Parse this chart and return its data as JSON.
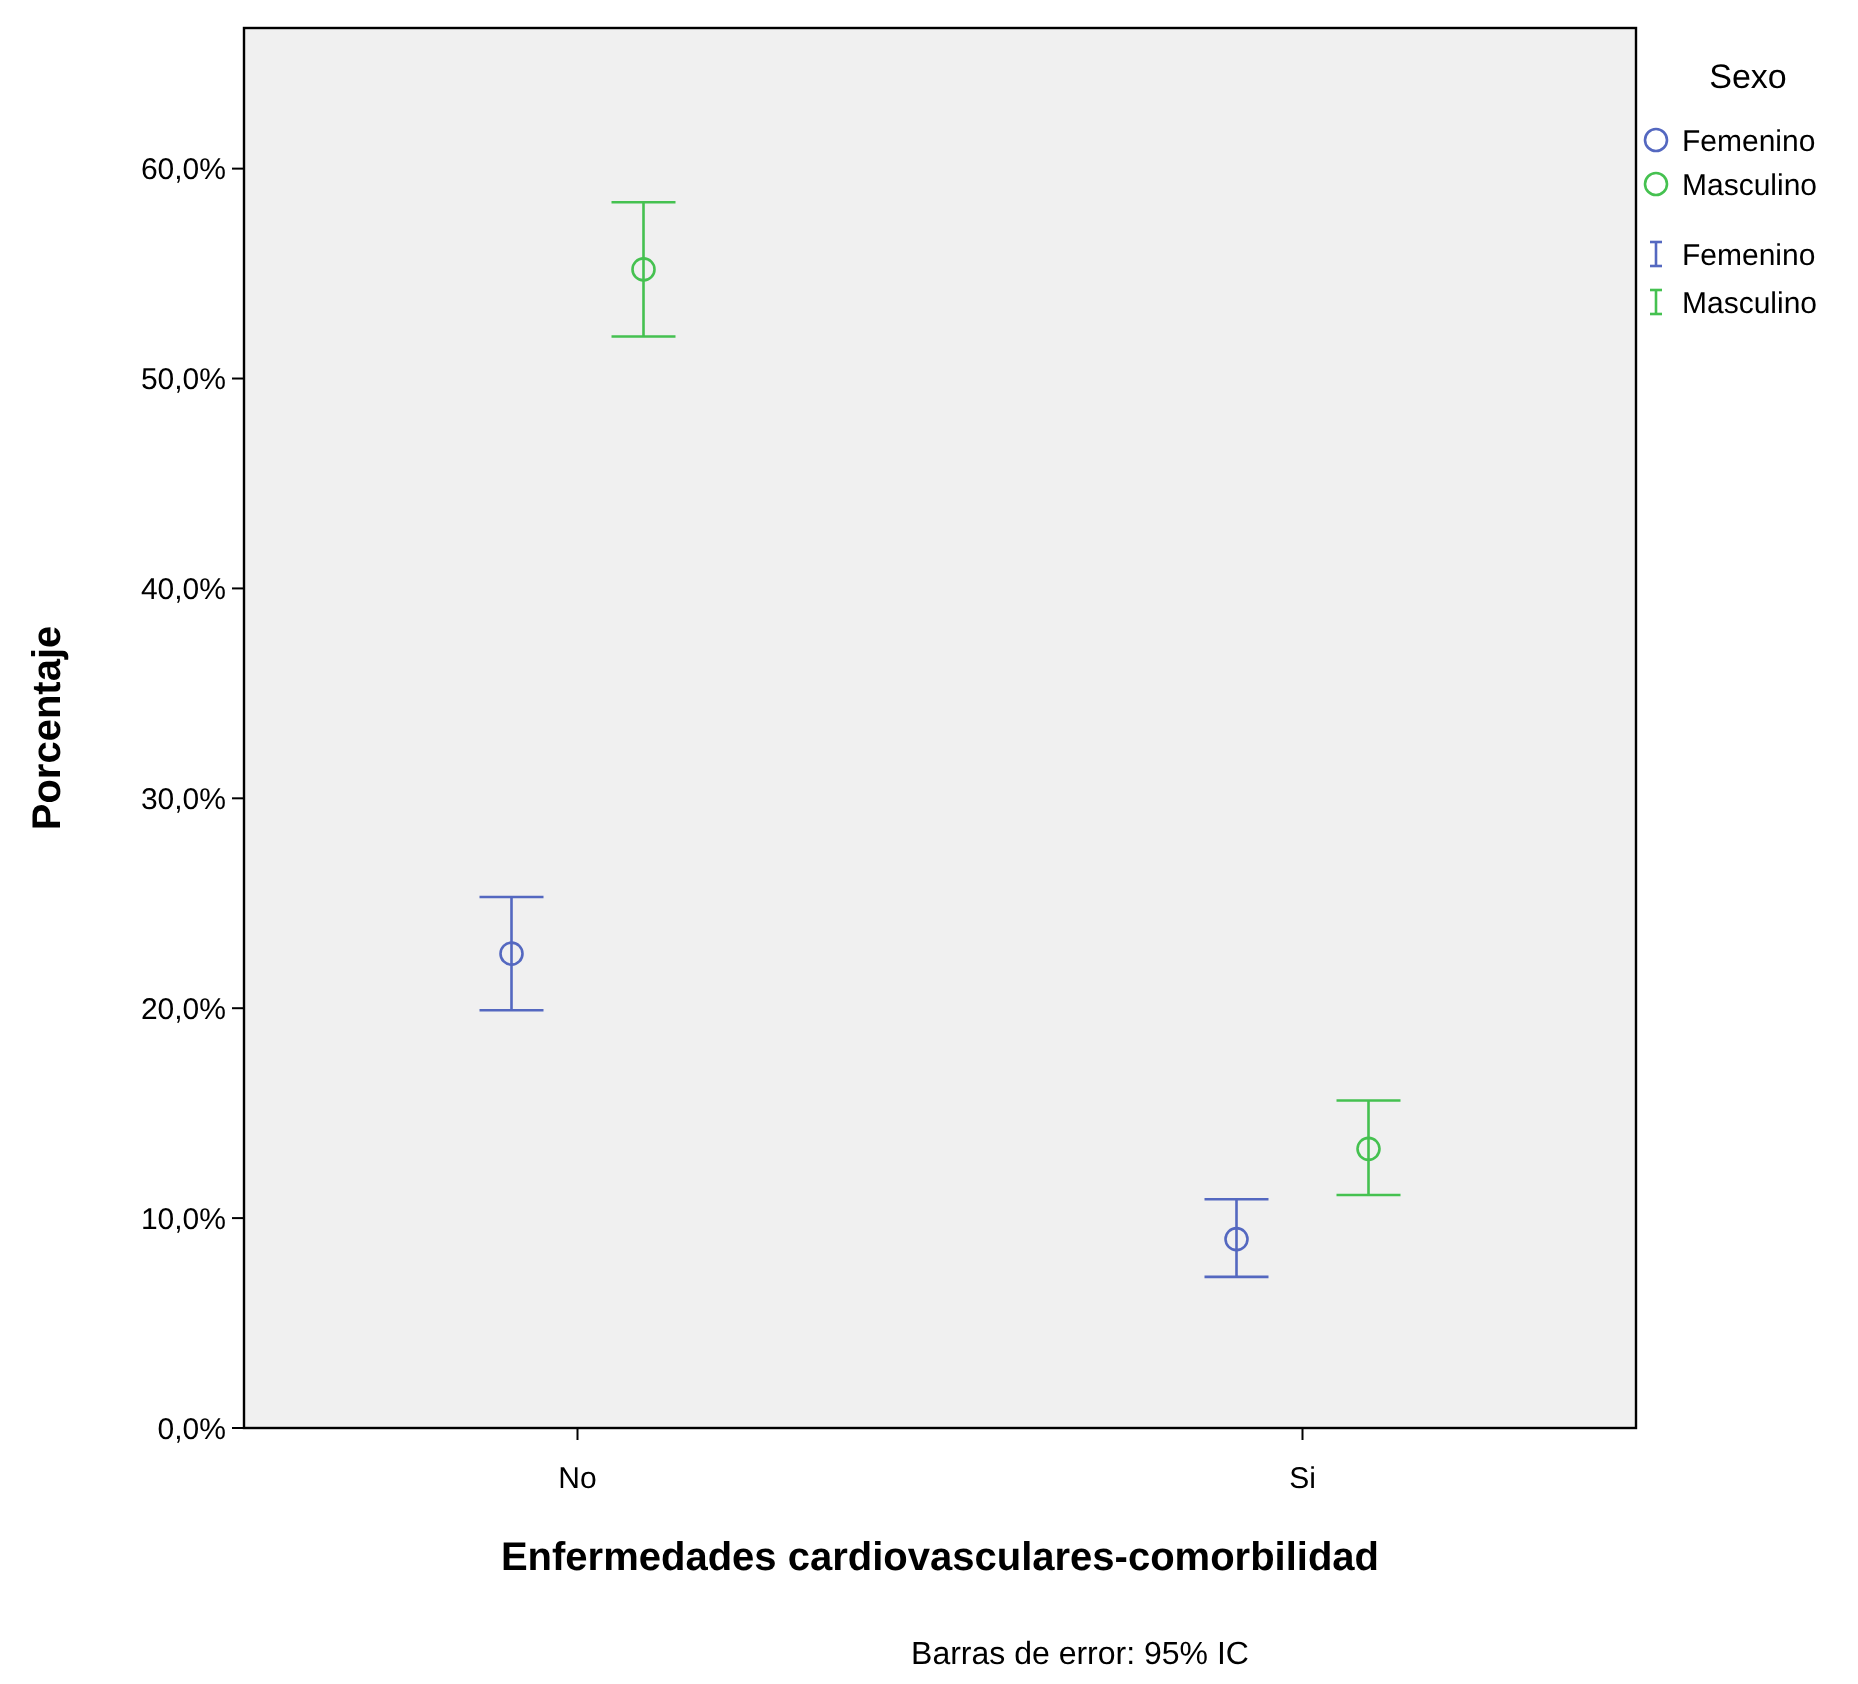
{
  "chart_data": {
    "type": "scatter",
    "xlabel": "Enfermedades cardiovasculares-comorbilidad",
    "ylabel": "Porcentaje",
    "legend_title": "Sexo",
    "categories": [
      "No",
      "Si"
    ],
    "series": [
      {
        "name": "Femenino",
        "color": "#5468c0",
        "values": [
          22.6,
          9.0
        ],
        "errors": [
          [
            19.9,
            25.3
          ],
          [
            7.2,
            10.9
          ]
        ]
      },
      {
        "name": "Masculino",
        "color": "#45c150",
        "values": [
          55.2,
          13.3
        ],
        "errors": [
          [
            52.0,
            58.4
          ],
          [
            11.1,
            15.6
          ]
        ]
      }
    ],
    "ylim": [
      0,
      66.7
    ],
    "yticks": [
      {
        "value": 0,
        "label": "0,0%"
      },
      {
        "value": 10,
        "label": "10,0%"
      },
      {
        "value": 20,
        "label": "20,0%"
      },
      {
        "value": 30,
        "label": "30,0%"
      },
      {
        "value": 40,
        "label": "40,0%"
      },
      {
        "value": 50,
        "label": "50,0%"
      },
      {
        "value": 60,
        "label": "60,0%"
      }
    ],
    "marker": "circle",
    "legend": "top right",
    "grid": false,
    "annotations": [
      "Barras de error: 95% IC"
    ]
  }
}
